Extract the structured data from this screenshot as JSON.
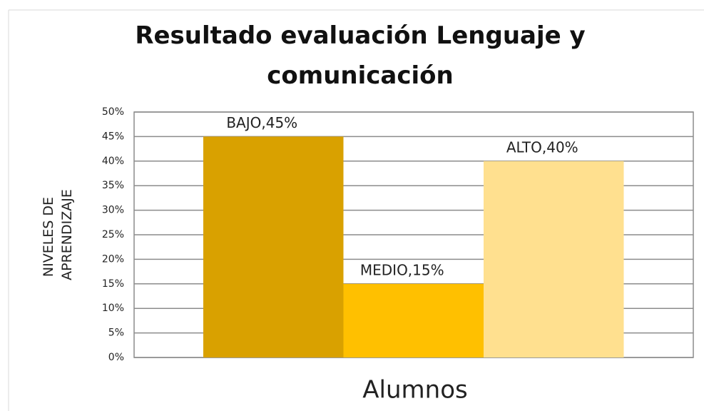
{
  "chart_data": {
    "type": "bar",
    "title": "Resultado evaluación Lenguaje y comunicación",
    "ylabel": [
      "NIVELES DE",
      "APRENDIZAJE"
    ],
    "xlabel": "Alumnos",
    "values": [
      45,
      15,
      40
    ],
    "value_labels": [
      "BAJO,45%",
      "MEDIO,15%",
      "ALTO,40%"
    ],
    "colors": [
      "#d9a100",
      "#ffc000",
      "#ffe08f"
    ],
    "ylim": [
      0,
      50
    ],
    "yticks": [
      {
        "value": 0,
        "label": "0%"
      },
      {
        "value": 5,
        "label": "5%"
      },
      {
        "value": 10,
        "label": "10%"
      },
      {
        "value": 15,
        "label": "15%"
      },
      {
        "value": 20,
        "label": "20%"
      },
      {
        "value": 25,
        "label": "25%"
      },
      {
        "value": 30,
        "label": "30%"
      },
      {
        "value": 35,
        "label": "35%"
      },
      {
        "value": 40,
        "label": "40%"
      },
      {
        "value": 45,
        "label": "45%"
      },
      {
        "value": 50,
        "label": "50%"
      }
    ],
    "grid": true
  }
}
